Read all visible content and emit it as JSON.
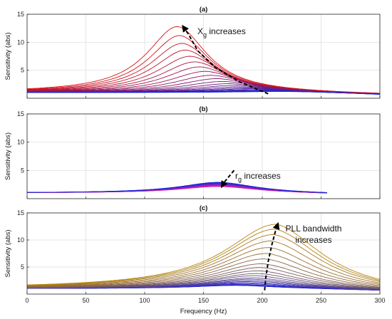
{
  "chart_data": [
    {
      "type": "line",
      "panel_label": "(a)",
      "ylabel": "Sensitivity (abs)",
      "xlim": [
        0,
        300
      ],
      "ylim": [
        0,
        15
      ],
      "xticks": [
        0,
        50,
        100,
        150,
        200,
        250,
        300
      ],
      "yticks": [
        5,
        10,
        15
      ],
      "grid": true,
      "annotation": {
        "text_main": "X",
        "text_sub": "g",
        "text_rest": " increases"
      },
      "arrow_path": [
        [
          205,
          0.8
        ],
        [
          180,
          3
        ],
        [
          160,
          5.5
        ],
        [
          145,
          8.5
        ],
        [
          137,
          11.5
        ],
        [
          133,
          12.7
        ]
      ],
      "family": {
        "count": 21,
        "x_start": 0,
        "x_end": 300,
        "color_from": "#dd1111",
        "color_to": "#1a28d8"
      },
      "series": [
        {
          "peak_x": 128,
          "peak_y": 12.8
        },
        {
          "peak_x": 130,
          "peak_y": 11.2
        },
        {
          "peak_x": 132,
          "peak_y": 9.8
        },
        {
          "peak_x": 135,
          "peak_y": 8.6
        },
        {
          "peak_x": 139,
          "peak_y": 7.5
        },
        {
          "peak_x": 143,
          "peak_y": 6.5
        },
        {
          "peak_x": 147,
          "peak_y": 5.6
        },
        {
          "peak_x": 152,
          "peak_y": 4.8
        },
        {
          "peak_x": 157,
          "peak_y": 4.1
        },
        {
          "peak_x": 162,
          "peak_y": 3.5
        },
        {
          "peak_x": 167,
          "peak_y": 3.0
        },
        {
          "peak_x": 172,
          "peak_y": 2.6
        },
        {
          "peak_x": 177,
          "peak_y": 2.3
        },
        {
          "peak_x": 182,
          "peak_y": 2.05
        },
        {
          "peak_x": 187,
          "peak_y": 1.85
        },
        {
          "peak_x": 192,
          "peak_y": 1.7
        },
        {
          "peak_x": 197,
          "peak_y": 1.55
        },
        {
          "peak_x": 202,
          "peak_y": 1.45
        },
        {
          "peak_x": 207,
          "peak_y": 1.35
        },
        {
          "peak_x": 212,
          "peak_y": 1.28
        },
        {
          "peak_x": 217,
          "peak_y": 1.2
        }
      ]
    },
    {
      "type": "line",
      "panel_label": "(b)",
      "ylabel": "Sensitivity (abs)",
      "xlim": [
        0,
        300
      ],
      "ylim": [
        0,
        15
      ],
      "xticks": [
        0,
        50,
        100,
        150,
        200,
        250,
        300
      ],
      "yticks": [
        5,
        10,
        15
      ],
      "grid": true,
      "annotation": {
        "text_main": "r",
        "text_sub": "g",
        "text_rest": " increases"
      },
      "arrow_path": [
        [
          176,
          5.0
        ],
        [
          172,
          4.0
        ],
        [
          168,
          3.0
        ],
        [
          166,
          2.3
        ]
      ],
      "family": {
        "count": 16,
        "x_start": 0,
        "x_end": 255,
        "color_from": "#ee22aa",
        "color_to": "#1a28d8"
      },
      "series": [
        {
          "peak_x": 163,
          "peak_y": 2.15
        },
        {
          "peak_x": 163,
          "peak_y": 2.2
        },
        {
          "peak_x": 163,
          "peak_y": 2.25
        },
        {
          "peak_x": 163,
          "peak_y": 2.3
        },
        {
          "peak_x": 163,
          "peak_y": 2.35
        },
        {
          "peak_x": 163,
          "peak_y": 2.4
        },
        {
          "peak_x": 163,
          "peak_y": 2.45
        },
        {
          "peak_x": 163,
          "peak_y": 2.5
        },
        {
          "peak_x": 163,
          "peak_y": 2.55
        },
        {
          "peak_x": 163,
          "peak_y": 2.6
        },
        {
          "peak_x": 163,
          "peak_y": 2.65
        },
        {
          "peak_x": 163,
          "peak_y": 2.7
        },
        {
          "peak_x": 163,
          "peak_y": 2.75
        },
        {
          "peak_x": 163,
          "peak_y": 2.8
        },
        {
          "peak_x": 163,
          "peak_y": 2.85
        },
        {
          "peak_x": 163,
          "peak_y": 2.9
        }
      ]
    },
    {
      "type": "line",
      "panel_label": "(c)",
      "ylabel": "Sensitivity (abs)",
      "xlabel": "Frequency (Hz)",
      "xlim": [
        0,
        300
      ],
      "ylim": [
        0,
        15
      ],
      "xticks": [
        0,
        50,
        100,
        150,
        200,
        250,
        300
      ],
      "yticks": [
        5,
        10,
        15
      ],
      "grid": true,
      "annotation": {
        "line1": "PLL bandwidth",
        "line2": "increases"
      },
      "arrow_path": [
        [
          202,
          0.7
        ],
        [
          203,
          3
        ],
        [
          205,
          6
        ],
        [
          208,
          9
        ],
        [
          211,
          11.5
        ],
        [
          213,
          12.8
        ]
      ],
      "family": {
        "count": 21,
        "x_start": 0,
        "x_end": 300,
        "color_from": "#2222dd",
        "color_to": "#b8860b"
      },
      "series": [
        {
          "peak_x": 178,
          "peak_y": 1.6
        },
        {
          "peak_x": 180,
          "peak_y": 1.7
        },
        {
          "peak_x": 182,
          "peak_y": 1.8
        },
        {
          "peak_x": 184,
          "peak_y": 1.95
        },
        {
          "peak_x": 186,
          "peak_y": 2.1
        },
        {
          "peak_x": 188,
          "peak_y": 2.3
        },
        {
          "peak_x": 190,
          "peak_y": 2.5
        },
        {
          "peak_x": 191,
          "peak_y": 2.75
        },
        {
          "peak_x": 193,
          "peak_y": 3.0
        },
        {
          "peak_x": 194,
          "peak_y": 3.4
        },
        {
          "peak_x": 196,
          "peak_y": 3.8
        },
        {
          "peak_x": 197,
          "peak_y": 4.3
        },
        {
          "peak_x": 199,
          "peak_y": 4.9
        },
        {
          "peak_x": 200,
          "peak_y": 5.6
        },
        {
          "peak_x": 202,
          "peak_y": 6.5
        },
        {
          "peak_x": 204,
          "peak_y": 7.5
        },
        {
          "peak_x": 206,
          "peak_y": 8.6
        },
        {
          "peak_x": 208,
          "peak_y": 9.8
        },
        {
          "peak_x": 210,
          "peak_y": 11.0
        },
        {
          "peak_x": 211,
          "peak_y": 12.0
        },
        {
          "peak_x": 212,
          "peak_y": 12.9
        }
      ]
    }
  ]
}
